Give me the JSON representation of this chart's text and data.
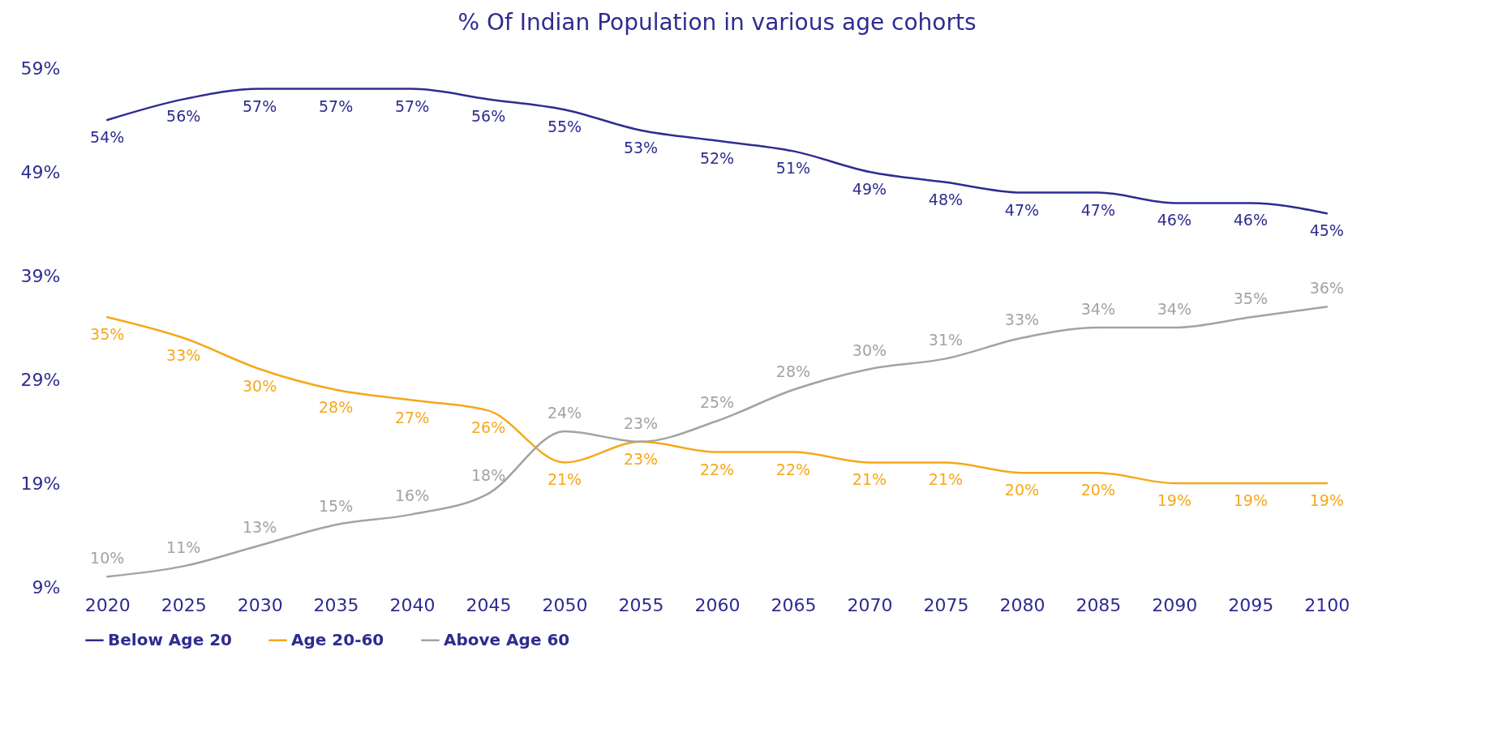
{
  "chart_data": {
    "type": "line",
    "title": "% Of Indian Population in various age cohorts",
    "categories": [
      "2020",
      "2025",
      "2030",
      "2035",
      "2040",
      "2045",
      "2050",
      "2055",
      "2060",
      "2065",
      "2070",
      "2075",
      "2080",
      "2085",
      "2090",
      "2095",
      "2100"
    ],
    "ylim": [
      9,
      59
    ],
    "yticks": [
      {
        "value": 9,
        "label": "9%"
      },
      {
        "value": 19,
        "label": "19%"
      },
      {
        "value": 29,
        "label": "29%"
      },
      {
        "value": 39,
        "label": "39%"
      },
      {
        "value": 49,
        "label": "49%"
      },
      {
        "value": 59,
        "label": "59%"
      }
    ],
    "grid": false,
    "legend": "bottom",
    "marker": "none",
    "line_style": "solid",
    "series": [
      {
        "name": "Below Age 20",
        "color": "#2e2c8f",
        "values": [
          54,
          56,
          57,
          57,
          57,
          56,
          55,
          53,
          52,
          51,
          49,
          48,
          47,
          47,
          46,
          46,
          45
        ],
        "value_labels": [
          "54%",
          "56%",
          "57%",
          "57%",
          "57%",
          "56%",
          "55%",
          "53%",
          "52%",
          "51%",
          "49%",
          "48%",
          "47%",
          "47%",
          "46%",
          "46%",
          "45%"
        ]
      },
      {
        "name": "Age 20-60",
        "color": "#f5a81c",
        "values": [
          35,
          33,
          30,
          28,
          27,
          26,
          21,
          23,
          22,
          22,
          21,
          21,
          20,
          20,
          19,
          19,
          19
        ],
        "value_labels": [
          "35%",
          "33%",
          "30%",
          "28%",
          "27%",
          "26%",
          "21%",
          "23%",
          "22%",
          "22%",
          "21%",
          "21%",
          "20%",
          "20%",
          "19%",
          "19%",
          "19%"
        ]
      },
      {
        "name": "Above Age 60",
        "color": "#a3a3a3",
        "values": [
          10,
          11,
          13,
          15,
          16,
          18,
          24,
          23,
          25,
          28,
          30,
          31,
          33,
          34,
          34,
          35,
          36
        ],
        "value_labels": [
          "10%",
          "11%",
          "13%",
          "15%",
          "16%",
          "18%",
          "24%",
          "23%",
          "25%",
          "28%",
          "30%",
          "31%",
          "33%",
          "34%",
          "34%",
          "35%",
          "36%"
        ]
      }
    ]
  }
}
